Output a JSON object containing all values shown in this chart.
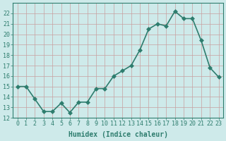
{
  "x": [
    0,
    1,
    2,
    3,
    4,
    5,
    6,
    7,
    8,
    9,
    10,
    11,
    12,
    13,
    14,
    15,
    16,
    17,
    18,
    19,
    20,
    21,
    22,
    23
  ],
  "y": [
    15.0,
    15.0,
    13.8,
    12.6,
    12.6,
    13.4,
    12.5,
    13.5,
    13.5,
    14.8,
    14.8,
    16.0,
    16.5,
    17.0,
    18.5,
    20.5,
    21.0,
    20.8,
    22.2,
    21.5,
    21.5,
    19.4,
    16.8,
    15.9
  ],
  "line_color": "#2e7d6e",
  "marker": "D",
  "markersize": 3,
  "linewidth": 1.2,
  "bg_color": "#ceeaea",
  "grid_color": "#c8a0a0",
  "xlabel": "Humidex (Indice chaleur)",
  "xlim": [
    -0.5,
    23.5
  ],
  "ylim": [
    12,
    23
  ],
  "yticks": [
    12,
    13,
    14,
    15,
    16,
    17,
    18,
    19,
    20,
    21,
    22
  ],
  "xticks": [
    0,
    1,
    2,
    3,
    4,
    5,
    6,
    7,
    8,
    9,
    10,
    11,
    12,
    13,
    14,
    15,
    16,
    17,
    18,
    19,
    20,
    21,
    22,
    23
  ],
  "tick_fontsize": 6,
  "label_fontsize": 7
}
